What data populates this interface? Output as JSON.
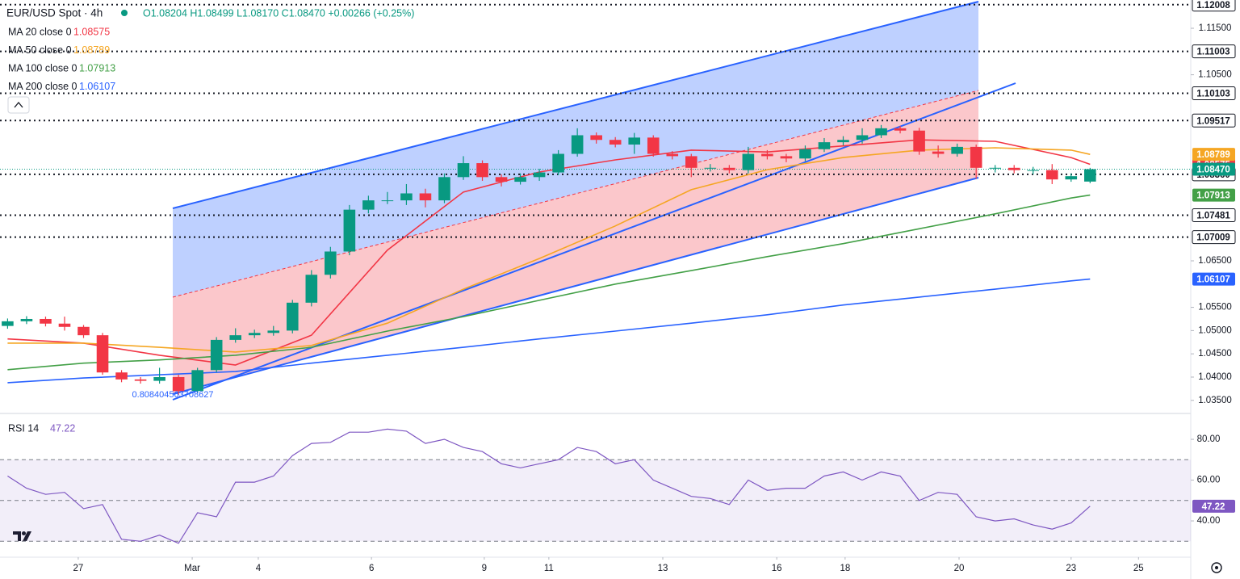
{
  "chart_data": [
    {
      "type": "candlestick",
      "title": "EUR/USD Spot · 4h",
      "ohlc_text": "O1.08204 H1.08499 L1.08170 C1.08470 +0.00266 (+0.25%)",
      "up_color": "#089981",
      "down_color": "#f23645",
      "open": [
        1.051,
        1.052,
        1.0525,
        1.0515,
        1.0508,
        1.049,
        1.041,
        1.0395,
        1.0392,
        1.04,
        1.037,
        1.0415,
        1.048,
        1.049,
        1.0495,
        1.05,
        1.056,
        1.062,
        1.067,
        1.076,
        1.078,
        1.078,
        1.0795,
        1.078,
        1.083,
        1.086,
        1.083,
        1.082,
        1.083,
        1.084,
        1.088,
        1.092,
        1.091,
        1.09,
        1.0915,
        1.088,
        1.0875,
        1.085,
        1.085,
        1.0845,
        1.088,
        1.0875,
        1.087,
        1.089,
        1.0905,
        1.091,
        1.092,
        1.0935,
        1.093,
        1.0885,
        1.088,
        1.0895,
        1.085,
        1.085,
        1.0845,
        1.0845,
        1.0825,
        1.08204
      ],
      "high": [
        1.0526,
        1.0531,
        1.053,
        1.053,
        1.0512,
        1.0495,
        1.0415,
        1.04,
        1.042,
        1.0405,
        1.042,
        1.0486,
        1.0505,
        1.0502,
        1.051,
        1.0566,
        1.063,
        1.068,
        1.077,
        1.079,
        1.0798,
        1.0815,
        1.0805,
        1.0838,
        1.0875,
        1.0866,
        1.0836,
        1.0838,
        1.0848,
        1.0888,
        1.0935,
        1.0926,
        1.0916,
        1.0925,
        1.092,
        1.0886,
        1.088,
        1.0858,
        1.0856,
        1.0895,
        1.0888,
        1.088,
        1.0898,
        1.0914,
        1.0918,
        1.0935,
        1.0942,
        1.094,
        1.0936,
        1.0898,
        1.0902,
        1.09,
        1.0856,
        1.0856,
        1.0852,
        1.0858,
        1.0838,
        1.08499
      ],
      "low": [
        1.0504,
        1.0514,
        1.0509,
        1.05,
        1.0484,
        1.0405,
        1.0389,
        1.0386,
        1.0386,
        1.0362,
        1.0365,
        1.041,
        1.0474,
        1.0484,
        1.0489,
        1.0494,
        1.0552,
        1.0612,
        1.0662,
        1.0752,
        1.0772,
        1.077,
        1.0765,
        1.0774,
        1.0824,
        1.0822,
        1.081,
        1.0814,
        1.0822,
        1.0834,
        1.0874,
        1.0902,
        1.0894,
        1.088,
        1.0874,
        1.0868,
        1.083,
        1.0842,
        1.0838,
        1.0838,
        1.0868,
        1.0862,
        1.0864,
        1.0884,
        1.0898,
        1.0902,
        1.0914,
        1.0924,
        1.0878,
        1.0872,
        1.0874,
        1.0826,
        1.084,
        1.0838,
        1.0836,
        1.0815,
        1.082,
        1.0817
      ],
      "close": [
        1.052,
        1.0525,
        1.0515,
        1.0508,
        1.049,
        1.041,
        1.0395,
        1.0392,
        1.04,
        1.037,
        1.0415,
        1.048,
        1.049,
        1.0495,
        1.05,
        1.056,
        1.062,
        1.067,
        1.076,
        1.078,
        1.078,
        1.0795,
        1.078,
        1.083,
        1.086,
        1.083,
        1.082,
        1.083,
        1.084,
        1.088,
        1.092,
        1.091,
        1.09,
        1.0915,
        1.088,
        1.0875,
        1.085,
        1.085,
        1.0845,
        1.088,
        1.0875,
        1.087,
        1.089,
        1.0905,
        1.091,
        1.092,
        1.0935,
        1.093,
        1.0885,
        1.088,
        1.0895,
        1.085,
        1.085,
        1.0845,
        1.0845,
        1.0825,
        1.0832,
        1.0847
      ],
      "last_label": "1.08470",
      "overlays": [
        {
          "name": "MA 20 close 0",
          "color": "#f23645",
          "x": [
            0,
            4,
            8,
            12,
            16,
            20,
            24,
            28,
            32,
            36,
            40,
            44,
            48,
            52,
            56,
            57
          ],
          "values": [
            1.0482,
            1.0473,
            1.0447,
            1.0426,
            1.049,
            1.0673,
            1.0798,
            1.0841,
            1.0867,
            1.0888,
            1.0884,
            1.0897,
            1.091,
            1.0907,
            1.0872,
            1.08575
          ]
        },
        {
          "name": "MA 50 close 0",
          "color": "#f5a623",
          "x": [
            0,
            4,
            8,
            12,
            16,
            20,
            24,
            28,
            32,
            36,
            40,
            44,
            48,
            52,
            56,
            57
          ],
          "values": [
            1.0473,
            1.0473,
            1.0464,
            1.0454,
            1.0468,
            1.0516,
            1.0589,
            1.0655,
            1.0725,
            1.0803,
            1.0846,
            1.0872,
            1.0888,
            1.0893,
            1.0888,
            1.08789
          ]
        },
        {
          "name": "MA 100 close 0",
          "color": "#43a047",
          "x": [
            0,
            4,
            8,
            12,
            16,
            20,
            24,
            28,
            32,
            36,
            40,
            44,
            48,
            52,
            56,
            57
          ],
          "values": [
            1.0416,
            1.043,
            1.0437,
            1.0447,
            1.0464,
            1.0499,
            1.053,
            1.0565,
            1.06,
            1.0629,
            1.0659,
            1.0687,
            1.0719,
            1.0751,
            1.0785,
            1.07913
          ]
        },
        {
          "name": "MA 200 close 0",
          "color": "#2962ff",
          "x": [
            0,
            4,
            8,
            12,
            16,
            20,
            24,
            28,
            32,
            36,
            40,
            44,
            48,
            52,
            56,
            57
          ],
          "values": [
            1.0388,
            1.0398,
            1.0405,
            1.0412,
            1.043,
            1.0447,
            1.0464,
            1.0482,
            1.0499,
            1.0516,
            1.0534,
            1.0555,
            1.0572,
            1.0589,
            1.0607,
            1.06107
          ]
        }
      ],
      "levels": [
        1.12008,
        1.11003,
        1.10103,
        1.09517,
        {
          "value": 1.0836,
          "label": "1.08360"
        },
        1.07481,
        1.07009
      ],
      "annotation": "0.808404563708627",
      "xlim": [
        -0.4,
        62.3
      ],
      "ylim": [
        1.03253,
        1.12108
      ],
      "yticks": [
        {
          "value": 1.115,
          "label": "1.11500"
        },
        {
          "value": 1.105,
          "label": "1.10500"
        },
        {
          "value": 1.065,
          "label": "1.06500"
        },
        {
          "value": 1.055,
          "label": "1.05500"
        },
        {
          "value": 1.05,
          "label": "1.05000"
        },
        {
          "value": 1.045,
          "label": "1.04500"
        },
        {
          "value": 1.04,
          "label": "1.04000"
        },
        {
          "value": 1.035,
          "label": "1.03500"
        }
      ],
      "xticks": [
        {
          "value": 3.72,
          "label": "27"
        },
        {
          "value": 9.72,
          "label": "Mar"
        },
        {
          "value": 13.2,
          "label": "4"
        },
        {
          "value": 19.16,
          "label": "6"
        },
        {
          "value": 25.1,
          "label": "9"
        },
        {
          "value": 28.5,
          "label": "11"
        },
        {
          "value": 34.5,
          "label": "13"
        },
        {
          "value": 40.5,
          "label": "16"
        },
        {
          "value": 44.1,
          "label": "18"
        },
        {
          "value": 50.1,
          "label": "20"
        },
        {
          "value": 56.0,
          "label": "23"
        },
        {
          "value": 59.55,
          "label": "25"
        }
      ],
      "grid": false
    },
    {
      "type": "line",
      "title": "RSI 14",
      "color": "#7e57c2",
      "values": [
        62,
        56,
        53,
        54,
        46,
        48,
        31,
        30,
        33,
        29,
        44,
        42,
        59,
        59,
        62,
        72,
        78,
        78.5,
        83.5,
        83.5,
        85,
        84,
        78,
        80,
        76,
        74,
        68,
        66,
        68,
        70,
        76,
        74,
        68,
        70,
        60,
        56,
        52,
        51,
        48,
        60,
        55,
        56,
        56,
        62,
        64,
        60,
        64,
        62,
        50,
        54,
        53,
        42,
        40,
        41,
        38,
        36,
        39,
        47.22
      ],
      "band": [
        30,
        70
      ],
      "midline": 50,
      "xlim": [
        -0.4,
        62.3
      ],
      "ylim": [
        22.2,
        91.5
      ],
      "yticks": [
        {
          "value": 80,
          "label": "80.00"
        },
        {
          "value": 60,
          "label": "60.00"
        },
        {
          "value": 40,
          "label": "40.00"
        }
      ],
      "grid": false
    }
  ]
}
